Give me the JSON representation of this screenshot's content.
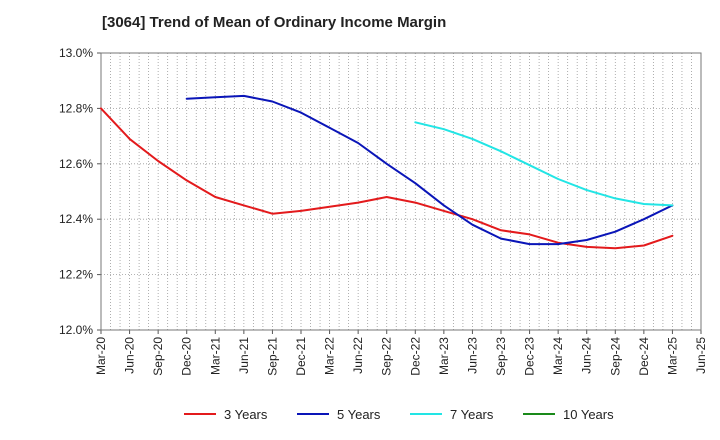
{
  "chart_data": {
    "type": "line",
    "title": "[3064]  Trend of Mean of Ordinary Income Margin",
    "xlabel": "",
    "ylabel": "",
    "x_range": [
      "2020-03",
      "2025-06"
    ],
    "ylim": [
      12.0,
      13.0
    ],
    "y_ticks": [
      "12.0%",
      "12.2%",
      "12.4%",
      "12.6%",
      "12.8%",
      "13.0%"
    ],
    "x_ticks": [
      "Mar-20",
      "Jun-20",
      "Sep-20",
      "Dec-20",
      "Mar-21",
      "Jun-21",
      "Sep-21",
      "Dec-21",
      "Mar-22",
      "Jun-22",
      "Sep-22",
      "Dec-22",
      "Mar-23",
      "Jun-23",
      "Sep-23",
      "Dec-23",
      "Mar-24",
      "Jun-24",
      "Sep-24",
      "Dec-24",
      "Mar-25",
      "Jun-25"
    ],
    "grid": "vertical dotted lines monthly, horizontal dotted lines at y ticks",
    "legend_position": "bottom",
    "series": [
      {
        "name": "3 Years",
        "color": "#e31a1c",
        "points": [
          [
            "2020-03",
            12.8
          ],
          [
            "2020-06",
            12.69
          ],
          [
            "2020-09",
            12.61
          ],
          [
            "2020-12",
            12.54
          ],
          [
            "2021-03",
            12.48
          ],
          [
            "2021-06",
            12.45
          ],
          [
            "2021-09",
            12.42
          ],
          [
            "2021-12",
            12.43
          ],
          [
            "2022-03",
            12.445
          ],
          [
            "2022-06",
            12.46
          ],
          [
            "2022-09",
            12.48
          ],
          [
            "2022-12",
            12.46
          ],
          [
            "2023-03",
            12.43
          ],
          [
            "2023-06",
            12.4
          ],
          [
            "2023-09",
            12.36
          ],
          [
            "2023-12",
            12.345
          ],
          [
            "2024-03",
            12.315
          ],
          [
            "2024-06",
            12.3
          ],
          [
            "2024-09",
            12.295
          ],
          [
            "2024-12",
            12.305
          ],
          [
            "2025-03",
            12.34
          ]
        ]
      },
      {
        "name": "5 Years",
        "color": "#0a15b8",
        "points": [
          [
            "2020-12",
            12.835
          ],
          [
            "2021-03",
            12.84
          ],
          [
            "2021-06",
            12.845
          ],
          [
            "2021-09",
            12.825
          ],
          [
            "2021-12",
            12.785
          ],
          [
            "2022-03",
            12.73
          ],
          [
            "2022-06",
            12.675
          ],
          [
            "2022-09",
            12.6
          ],
          [
            "2022-12",
            12.53
          ],
          [
            "2023-03",
            12.45
          ],
          [
            "2023-06",
            12.38
          ],
          [
            "2023-09",
            12.33
          ],
          [
            "2023-12",
            12.31
          ],
          [
            "2024-03",
            12.31
          ],
          [
            "2024-06",
            12.325
          ],
          [
            "2024-09",
            12.355
          ],
          [
            "2024-12",
            12.4
          ],
          [
            "2025-03",
            12.45
          ]
        ]
      },
      {
        "name": "7 Years",
        "color": "#22e5e5",
        "points": [
          [
            "2022-12",
            12.75
          ],
          [
            "2023-03",
            12.725
          ],
          [
            "2023-06",
            12.69
          ],
          [
            "2023-09",
            12.645
          ],
          [
            "2023-12",
            12.595
          ],
          [
            "2024-03",
            12.545
          ],
          [
            "2024-06",
            12.505
          ],
          [
            "2024-09",
            12.475
          ],
          [
            "2024-12",
            12.455
          ],
          [
            "2025-03",
            12.45
          ]
        ]
      },
      {
        "name": "10 Years",
        "color": "#1a8a1a",
        "points": []
      }
    ]
  }
}
